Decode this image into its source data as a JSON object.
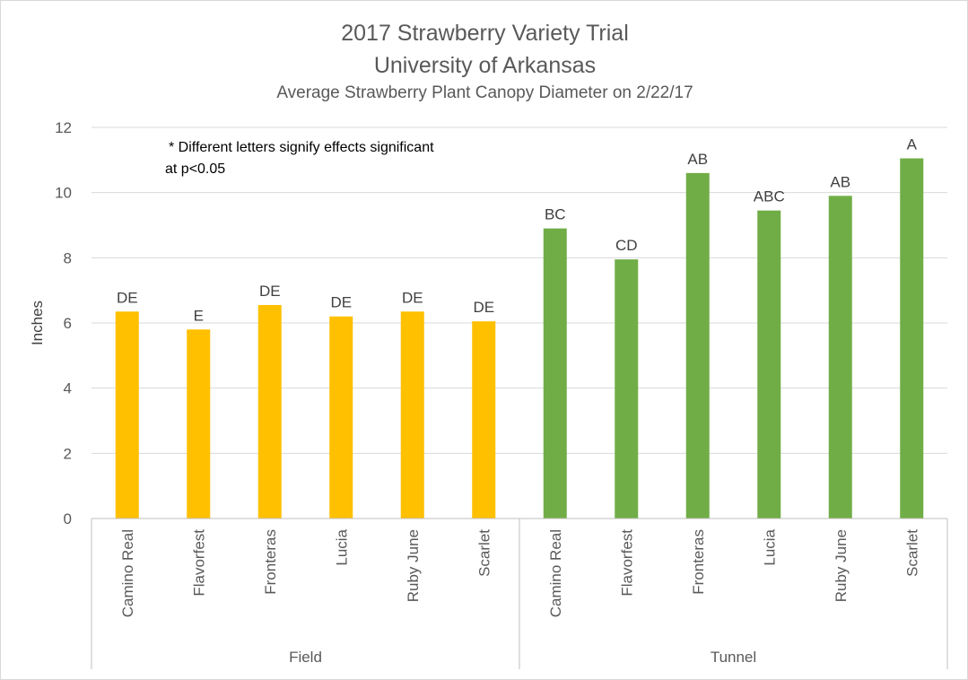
{
  "chart_data": {
    "type": "bar",
    "title": "2017 Strawberry Variety Trial",
    "subtitle": "University of Arkansas",
    "subtitle2": "Average Strawberry Plant Canopy Diameter on 2/22/17",
    "ylabel": "Inches",
    "ylim": [
      0,
      12
    ],
    "yticks": [
      0,
      2,
      4,
      6,
      8,
      10,
      12
    ],
    "grid": true,
    "annotation": [
      "* Different letters signify effects significant",
      "at p<0.05"
    ],
    "groups": [
      {
        "name": "Field",
        "color": "#ffc000",
        "bars": [
          {
            "category": "Camino Real",
            "value": 6.35,
            "label": "DE"
          },
          {
            "category": "Flavorfest",
            "value": 5.8,
            "label": "E"
          },
          {
            "category": "Fronteras",
            "value": 6.55,
            "label": "DE"
          },
          {
            "category": "Lucia",
            "value": 6.2,
            "label": "DE"
          },
          {
            "category": "Ruby June",
            "value": 6.35,
            "label": "DE"
          },
          {
            "category": "Scarlet",
            "value": 6.05,
            "label": "DE"
          }
        ]
      },
      {
        "name": "Tunnel",
        "color": "#70ad47",
        "bars": [
          {
            "category": "Camino Real",
            "value": 8.9,
            "label": "BC"
          },
          {
            "category": "Flavorfest",
            "value": 7.95,
            "label": "CD"
          },
          {
            "category": "Fronteras",
            "value": 10.6,
            "label": "AB"
          },
          {
            "category": "Lucia",
            "value": 9.45,
            "label": "ABC"
          },
          {
            "category": "Ruby June",
            "value": 9.9,
            "label": "AB"
          },
          {
            "category": "Scarlet",
            "value": 11.05,
            "label": "A"
          }
        ]
      }
    ]
  }
}
